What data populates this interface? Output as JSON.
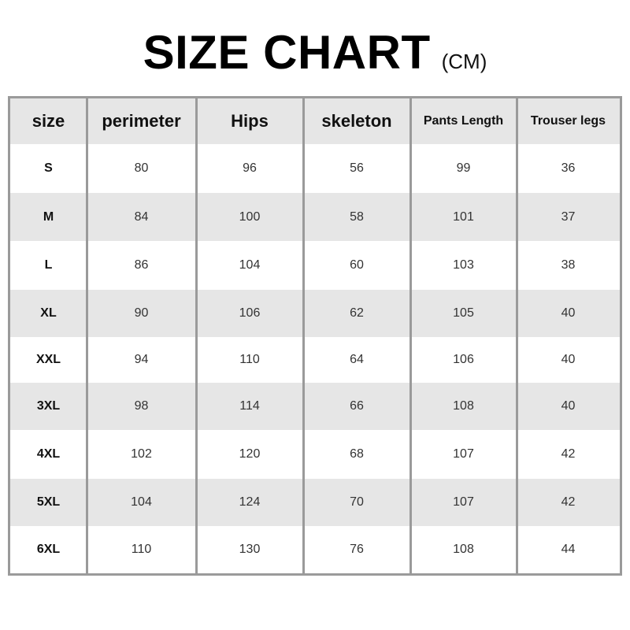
{
  "title": {
    "main": "SIZE CHART",
    "unit": "(CM)"
  },
  "table": {
    "headers": [
      "size",
      "perimeter",
      "Hips",
      "skeleton",
      "Pants Length",
      "Trouser legs"
    ],
    "rows": [
      [
        "S",
        "80",
        "96",
        "56",
        "99",
        "36"
      ],
      [
        "M",
        "84",
        "100",
        "58",
        "101",
        "37"
      ],
      [
        "L",
        "86",
        "104",
        "60",
        "103",
        "38"
      ],
      [
        "XL",
        "90",
        "106",
        "62",
        "105",
        "40"
      ],
      [
        "XXL",
        "94",
        "110",
        "64",
        "106",
        "40"
      ],
      [
        "3XL",
        "98",
        "114",
        "66",
        "108",
        "40"
      ],
      [
        "4XL",
        "102",
        "120",
        "68",
        "107",
        "42"
      ],
      [
        "5XL",
        "104",
        "124",
        "70",
        "107",
        "42"
      ],
      [
        "6XL",
        "110",
        "130",
        "76",
        "108",
        "44"
      ]
    ]
  },
  "colors": {
    "border": "#9a9a9a",
    "shade": "#e6e6e6",
    "text": "#333333"
  }
}
